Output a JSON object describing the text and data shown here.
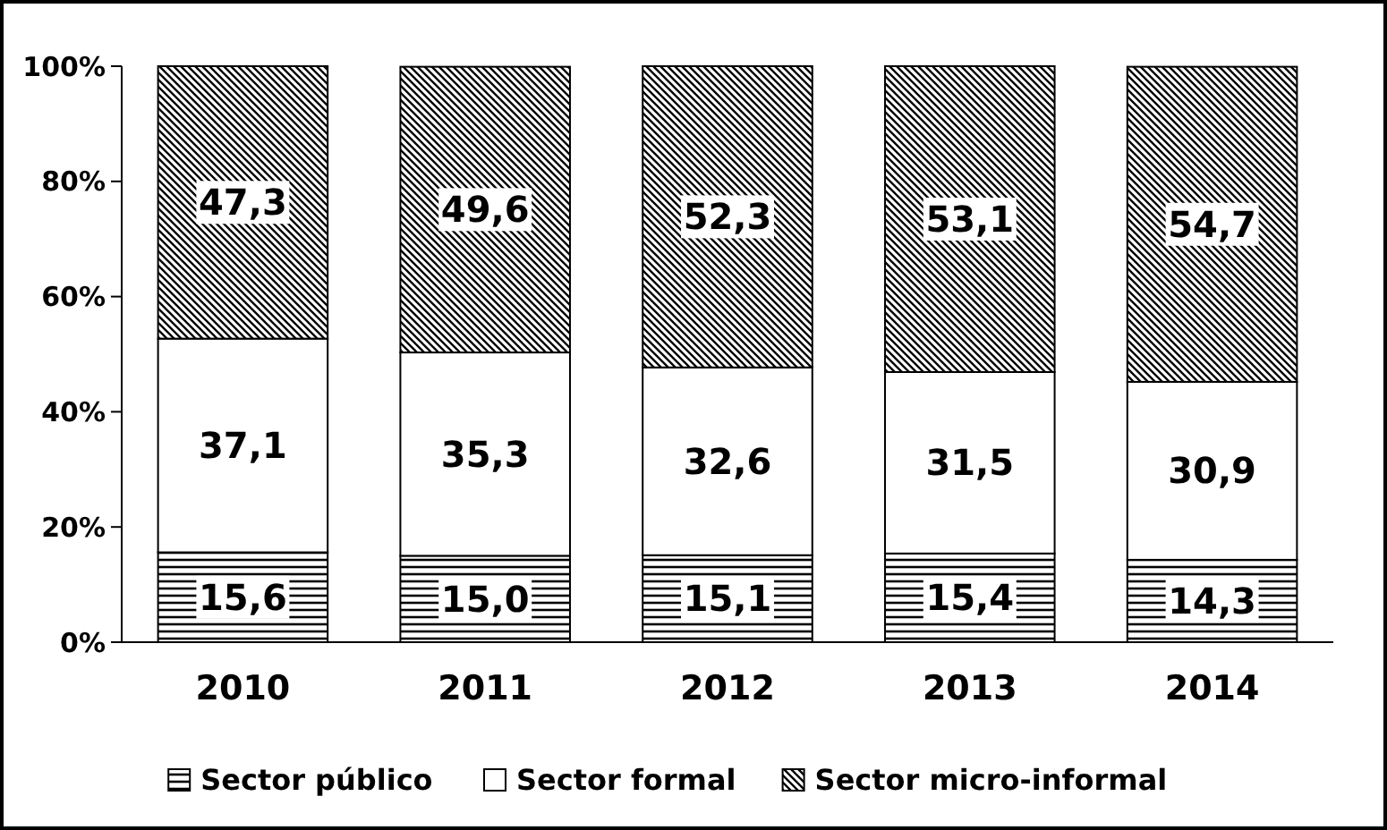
{
  "chart_data": {
    "type": "bar",
    "stacked": true,
    "categories": [
      "2010",
      "2011",
      "2012",
      "2013",
      "2014"
    ],
    "series": [
      {
        "name": "Sector público",
        "color": "#000000",
        "values": [
          15.6,
          15.0,
          15.1,
          15.4,
          14.3
        ],
        "value_labels": [
          "15,6",
          "15,0",
          "15,1",
          "15,4",
          "14,3"
        ]
      },
      {
        "name": "Sector formal",
        "color": "#ffffff",
        "values": [
          37.1,
          35.3,
          32.6,
          31.5,
          30.9
        ],
        "value_labels": [
          "37,1",
          "35,3",
          "32,6",
          "31,5",
          "30,9"
        ]
      },
      {
        "name": "Sector micro-informal",
        "color": "#000000",
        "values": [
          47.3,
          49.6,
          52.3,
          53.1,
          54.7
        ],
        "value_labels": [
          "47,3",
          "49,6",
          "52,3",
          "53,1",
          "54,7"
        ]
      }
    ],
    "ylim": [
      0,
      100
    ],
    "yticks": [
      {
        "value": 0,
        "label": "0%"
      },
      {
        "value": 20,
        "label": "20%"
      },
      {
        "value": 40,
        "label": "40%"
      },
      {
        "value": 60,
        "label": "60%"
      },
      {
        "value": 80,
        "label": "80%"
      },
      {
        "value": 100,
        "label": "100%"
      }
    ],
    "legend": "bottom"
  }
}
